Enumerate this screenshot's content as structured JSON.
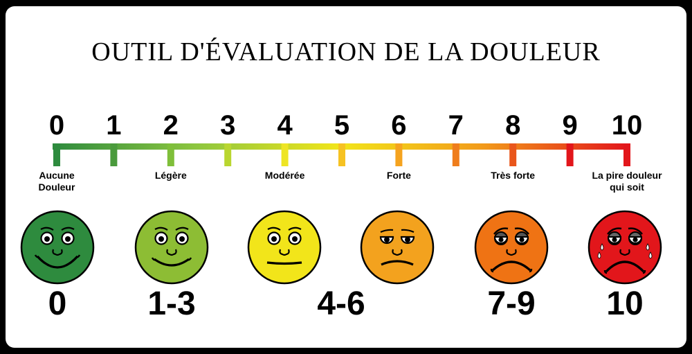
{
  "title": "OUTIL D'ÉVALUATION DE LA DOULEUR",
  "scale": {
    "ticks": [
      "0",
      "1",
      "2",
      "3",
      "4",
      "5",
      "6",
      "7",
      "8",
      "9",
      "10"
    ],
    "gradient_colors": [
      "#2e8b3e",
      "#8dc63f",
      "#f2e51a",
      "#f29a1a",
      "#e2161b"
    ],
    "tick_colors": [
      "#2e8b3e",
      "#4a9a3c",
      "#7fbf3a",
      "#b9d630",
      "#eee524",
      "#f6c222",
      "#f5a31f",
      "#ef7d1c",
      "#e9561b",
      "#e2161b",
      "#e2161b"
    ]
  },
  "labels": [
    {
      "tick": 0,
      "text": "Aucune\nDouleur"
    },
    {
      "tick": 2,
      "text": "Légère"
    },
    {
      "tick": 4,
      "text": "Modérée"
    },
    {
      "tick": 6,
      "text": "Forte"
    },
    {
      "tick": 8,
      "text": "Très forte"
    },
    {
      "tick": 10,
      "text": "La pire douleur\nqui soit"
    }
  ],
  "faces": [
    {
      "name": "face-no-pain-icon",
      "color": "#2e8b3e",
      "range": "0"
    },
    {
      "name": "face-mild-pain-icon",
      "color": "#8dbd34",
      "range": "1-3"
    },
    {
      "name": "face-moderate-pain-icon",
      "color": "#f2e51a",
      "range": "4-6"
    },
    {
      "name": "face-severe-pain-icon",
      "color": "#f3a21e",
      "range": ""
    },
    {
      "name": "face-very-severe-pain-icon",
      "color": "#ef7314",
      "range": "7-9"
    },
    {
      "name": "face-worst-pain-icon",
      "color": "#e2161b",
      "range": "10"
    }
  ]
}
